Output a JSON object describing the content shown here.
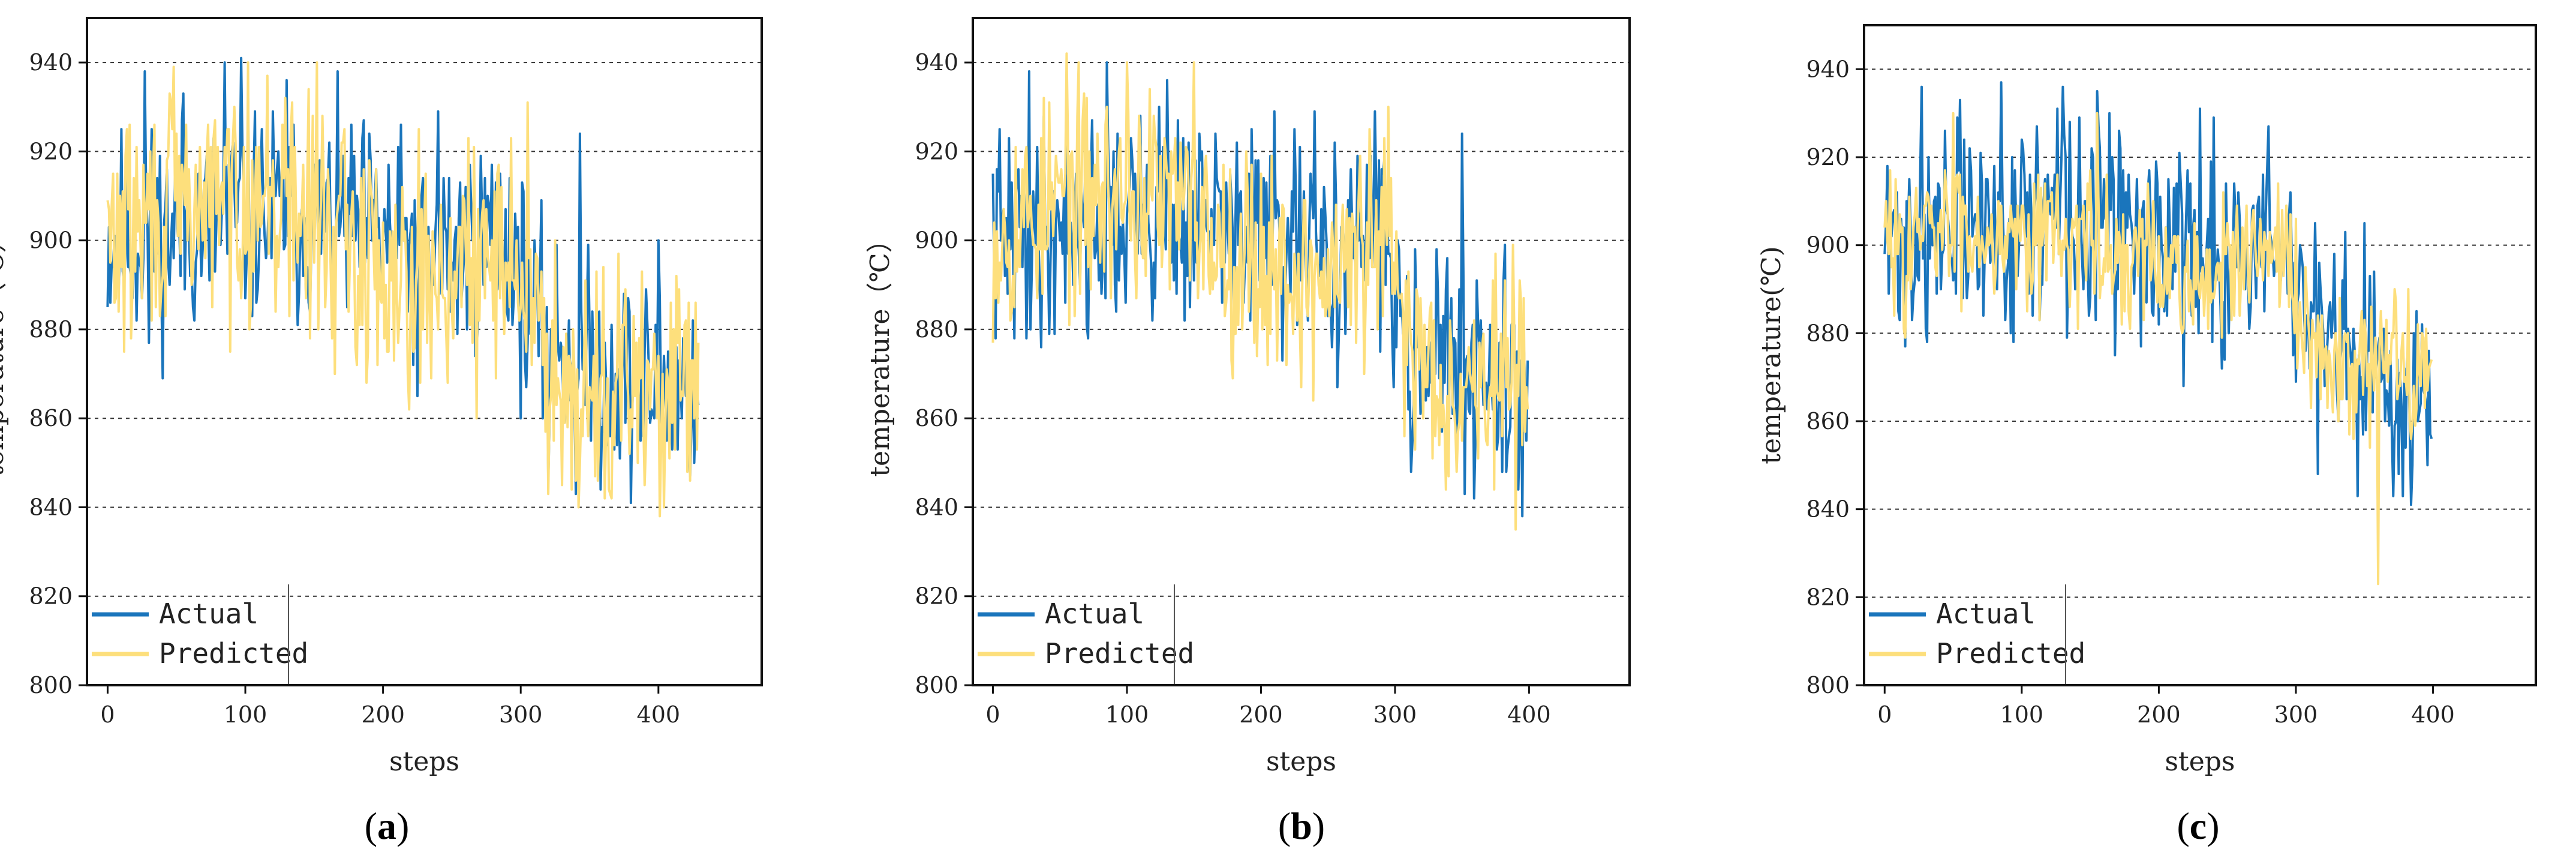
{
  "colors": {
    "actual": "#1a75bc",
    "predicted": "#fddf7c",
    "grid": "#333333",
    "frame": "#111111"
  },
  "chart_data": [
    {
      "type": "line",
      "panel_label": "a",
      "xlabel": "steps",
      "ylabel": "temperature（℃）",
      "xlim": [
        -15,
        475
      ],
      "ylim": [
        800,
        950
      ],
      "xticks": [
        0,
        100,
        200,
        300,
        400
      ],
      "yticks": [
        800,
        820,
        840,
        860,
        880,
        900,
        920,
        940
      ],
      "grid": "horizontal dashed",
      "legend_position": "bottom-left",
      "n_points": 430,
      "series": [
        {
          "name": "Actual",
          "color": "#1a75bc",
          "segment_means": [
            [
              0,
              900
            ],
            [
              60,
              903
            ],
            [
              120,
              906
            ],
            [
              180,
              903
            ],
            [
              240,
              896
            ],
            [
              290,
              902
            ],
            [
              310,
              880
            ],
            [
              340,
              872
            ],
            [
              380,
              868
            ],
            [
              429,
              866
            ]
          ],
          "amplitude": 12,
          "seed": 11,
          "peaks": [
            [
              27,
              938
            ],
            [
              55,
              933
            ],
            [
              85,
              940
            ],
            [
              97,
              941
            ],
            [
              130,
              936
            ],
            [
              240,
              929
            ],
            [
              343,
              924
            ],
            [
              400,
              900
            ],
            [
              225,
              865
            ],
            [
              340,
              843
            ],
            [
              320,
              846
            ],
            [
              30,
              877
            ]
          ]
        },
        {
          "name": "Predicted",
          "color": "#fddf7c",
          "segment_means": [
            [
              0,
              900
            ],
            [
              60,
              908
            ],
            [
              120,
              910
            ],
            [
              180,
              898
            ],
            [
              240,
              892
            ],
            [
              290,
              900
            ],
            [
              310,
              880
            ],
            [
              340,
              868
            ],
            [
              380,
              866
            ],
            [
              429,
              866
            ]
          ],
          "amplitude": 13,
          "seed": 29,
          "peaks": [
            [
              48,
              939
            ],
            [
              102,
              940
            ],
            [
              152,
              940
            ],
            [
              188,
              868
            ],
            [
              268,
              860
            ],
            [
              305,
              931
            ],
            [
              330,
              845
            ],
            [
              365,
              843
            ],
            [
              390,
              845
            ],
            [
              428,
              853
            ]
          ]
        }
      ]
    },
    {
      "type": "line",
      "panel_label": "b",
      "xlabel": "steps",
      "ylabel": "temperature（℃）",
      "xlim": [
        -15,
        475
      ],
      "ylim": [
        800,
        950
      ],
      "xticks": [
        0,
        100,
        200,
        300,
        400
      ],
      "yticks": [
        800,
        820,
        840,
        860,
        880,
        900,
        920,
        940
      ],
      "grid": "horizontal dashed",
      "legend_position": "bottom-left",
      "n_points": 400,
      "series": [
        {
          "name": "Actual",
          "color": "#1a75bc",
          "segment_means": [
            [
              0,
              900
            ],
            [
              60,
              903
            ],
            [
              120,
              906
            ],
            [
              180,
              903
            ],
            [
              240,
              896
            ],
            [
              290,
              902
            ],
            [
              310,
              880
            ],
            [
              340,
              872
            ],
            [
              370,
              868
            ],
            [
              399,
              866
            ]
          ],
          "amplitude": 12,
          "seed": 41,
          "peaks": [
            [
              27,
              938
            ],
            [
              55,
              933
            ],
            [
              85,
              940
            ],
            [
              130,
              936
            ],
            [
              240,
              929
            ],
            [
              350,
              924
            ],
            [
              312,
              848
            ],
            [
              352,
              843
            ],
            [
              383,
              848
            ],
            [
              390,
              845
            ]
          ]
        },
        {
          "name": "Predicted",
          "color": "#fddf7c",
          "segment_means": [
            [
              0,
              902
            ],
            [
              60,
              910
            ],
            [
              120,
              910
            ],
            [
              180,
              898
            ],
            [
              240,
              890
            ],
            [
              290,
              900
            ],
            [
              310,
              878
            ],
            [
              340,
              868
            ],
            [
              370,
              868
            ],
            [
              399,
              868
            ]
          ],
          "amplitude": 12,
          "seed": 53,
          "peaks": [
            [
              55,
              942
            ],
            [
              100,
              940
            ],
            [
              150,
              940
            ],
            [
              295,
              930
            ],
            [
              330,
              856
            ],
            [
              375,
              897
            ],
            [
              345,
              858
            ]
          ]
        }
      ]
    },
    {
      "type": "line",
      "panel_label": "c",
      "xlabel": "steps",
      "ylabel": "temperature(℃)",
      "xlim": [
        -15,
        475
      ],
      "ylim": [
        800,
        950
      ],
      "xticks": [
        0,
        100,
        200,
        300,
        400
      ],
      "yticks": [
        800,
        820,
        840,
        860,
        880,
        900,
        920,
        940
      ],
      "grid": "horizontal dashed",
      "legend_position": "bottom-left",
      "n_points": 400,
      "series": [
        {
          "name": "Actual",
          "color": "#1a75bc",
          "segment_means": [
            [
              0,
              900
            ],
            [
              60,
              903
            ],
            [
              120,
              906
            ],
            [
              180,
              903
            ],
            [
              240,
              896
            ],
            [
              290,
              902
            ],
            [
              310,
              880
            ],
            [
              340,
              872
            ],
            [
              370,
              866
            ],
            [
              399,
              868
            ]
          ],
          "amplitude": 12,
          "seed": 71,
          "peaks": [
            [
              27,
              936
            ],
            [
              55,
              933
            ],
            [
              85,
              937
            ],
            [
              130,
              936
            ],
            [
              155,
              935
            ],
            [
              240,
              929
            ],
            [
              350,
              905
            ],
            [
              316,
              848
            ],
            [
              345,
              843
            ],
            [
              375,
              848
            ],
            [
              385,
              850
            ]
          ]
        },
        {
          "name": "Predicted",
          "color": "#fddf7c",
          "segment_means": [
            [
              0,
              900
            ],
            [
              60,
              904
            ],
            [
              120,
              904
            ],
            [
              180,
              896
            ],
            [
              240,
              892
            ],
            [
              290,
              898
            ],
            [
              310,
              878
            ],
            [
              340,
              870
            ],
            [
              370,
              872
            ],
            [
              399,
              874
            ]
          ],
          "amplitude": 8,
          "seed": 83,
          "peaks": [
            [
              50,
              930
            ],
            [
              155,
              930
            ],
            [
              360,
              823
            ],
            [
              372,
              890
            ],
            [
              290,
              908
            ]
          ]
        }
      ]
    }
  ]
}
